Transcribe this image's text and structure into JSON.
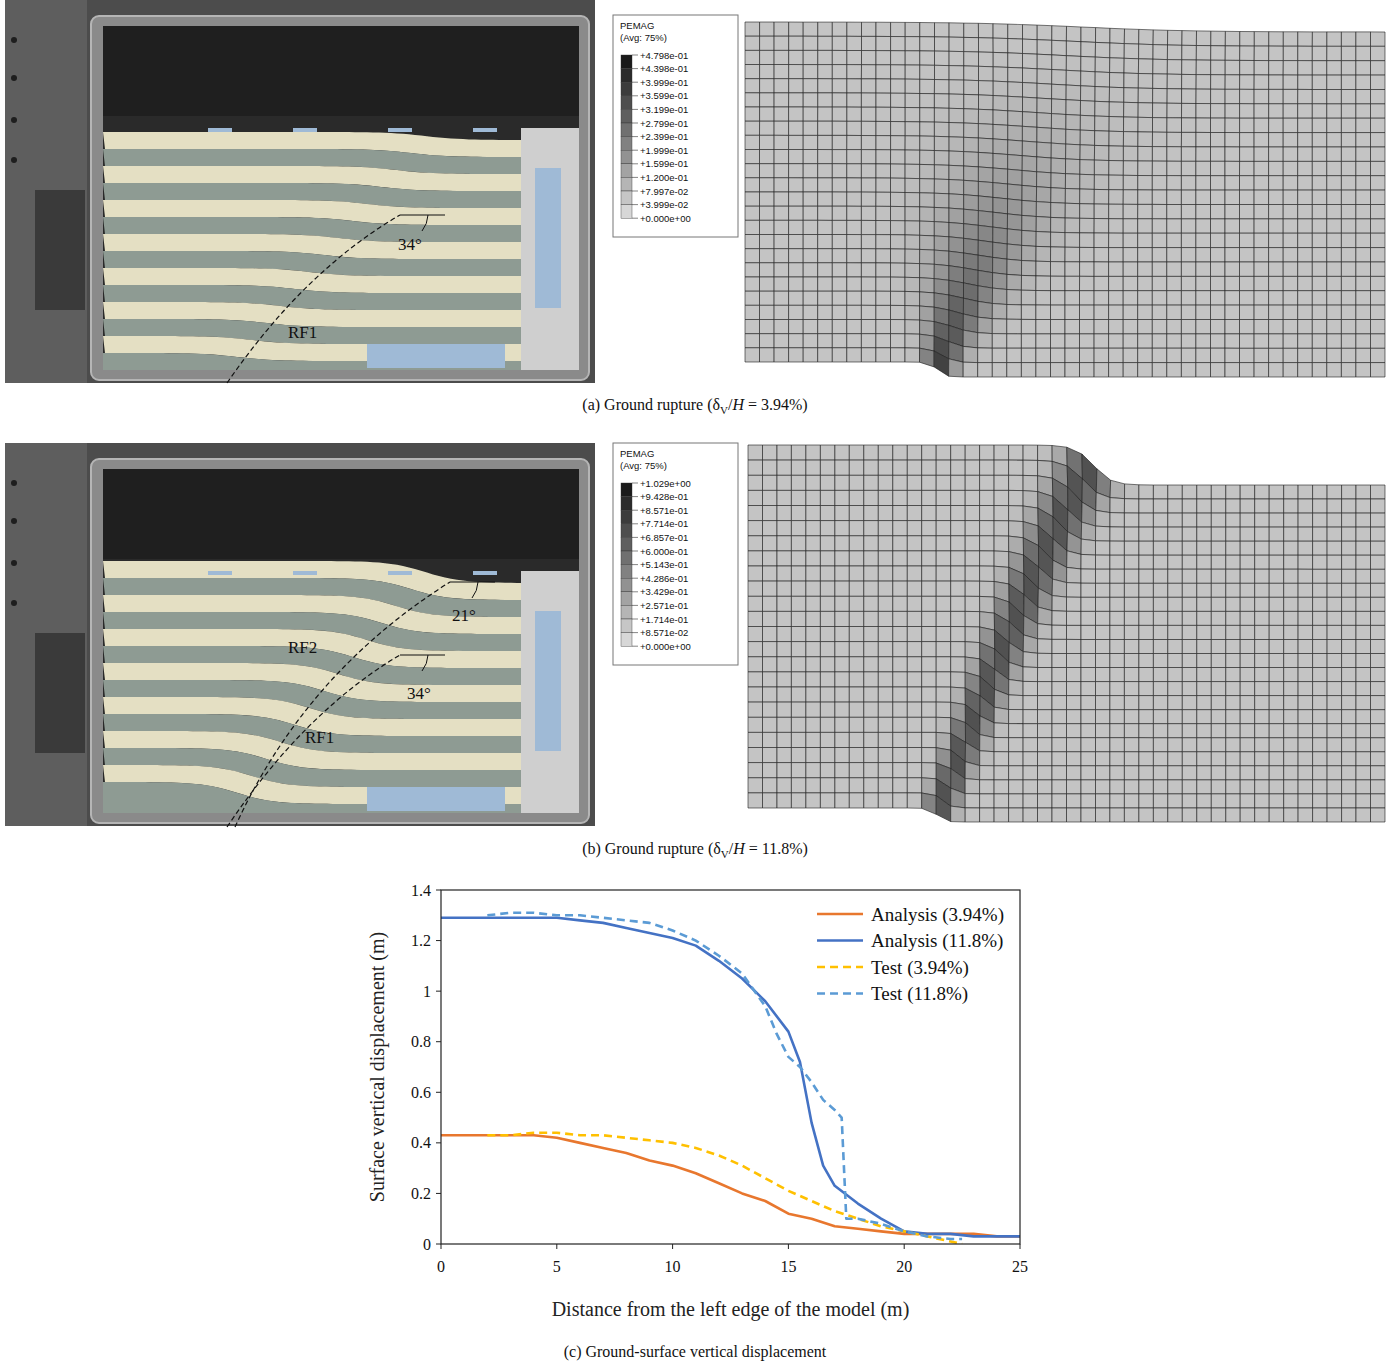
{
  "photos": [
    {
      "annotations": [
        {
          "text": "34°"
        },
        {
          "text": "RF1"
        }
      ]
    },
    {
      "annotations": [
        {
          "text": "21°"
        },
        {
          "text": "RF2"
        },
        {
          "text": "34°"
        },
        {
          "text": "RF1"
        }
      ]
    }
  ],
  "fe_legends": [
    {
      "title": "PEMAG",
      "subtitle": "(Avg: 75%)",
      "values": [
        "+4.798e-01",
        "+4.398e-01",
        "+3.999e-01",
        "+3.599e-01",
        "+3.199e-01",
        "+2.799e-01",
        "+2.399e-01",
        "+1.999e-01",
        "+1.599e-01",
        "+1.200e-01",
        "+7.997e-02",
        "+3.999e-02",
        "+0.000e+00"
      ]
    },
    {
      "title": "PEMAG",
      "subtitle": "(Avg: 75%)",
      "values": [
        "+1.029e+00",
        "+9.428e-01",
        "+8.571e-01",
        "+7.714e-01",
        "+6.857e-01",
        "+6.000e-01",
        "+5.143e-01",
        "+4.286e-01",
        "+3.429e-01",
        "+2.571e-01",
        "+1.714e-01",
        "+8.571e-02",
        "+0.000e+00"
      ]
    }
  ],
  "captions": [
    {
      "parts": [
        {
          "text": "(a) Ground rupture (δ"
        },
        {
          "text": "V",
          "style": "sub"
        },
        {
          "text": "/"
        },
        {
          "text": "H",
          "style": "italic"
        },
        {
          "text": " = 3.94%)"
        }
      ]
    },
    {
      "parts": [
        {
          "text": "(b) Ground rupture (δ"
        },
        {
          "text": "V",
          "style": "sub"
        },
        {
          "text": "/"
        },
        {
          "text": "H",
          "style": "italic"
        },
        {
          "text": " = 11.8%)"
        }
      ]
    },
    {
      "parts": [
        {
          "text": "(c) Ground-surface vertical displacement"
        }
      ]
    }
  ],
  "chart_data": {
    "type": "line",
    "x_label": "Distance from the left edge of the model (m)",
    "y_label": "Surface vertical displacement (m)",
    "xlim": [
      0,
      25
    ],
    "ylim": [
      0,
      1.4
    ],
    "xticks": [
      0,
      5,
      10,
      15,
      20,
      25
    ],
    "yticks": [
      0,
      0.2,
      0.4,
      0.6,
      0.8,
      1,
      1.2,
      1.4
    ],
    "grid": false,
    "legend": "top-right",
    "series": [
      {
        "name": "Analysis (3.94%)",
        "color": "#E8772E",
        "line_style": "solid",
        "x": [
          0,
          2,
          4,
          5,
          6,
          7,
          8,
          9,
          10,
          11,
          12,
          13,
          14,
          15,
          16,
          17,
          18,
          19,
          20,
          21,
          22,
          23,
          24,
          25
        ],
        "values": [
          0.43,
          0.43,
          0.43,
          0.42,
          0.4,
          0.38,
          0.36,
          0.33,
          0.31,
          0.28,
          0.24,
          0.2,
          0.17,
          0.12,
          0.1,
          0.07,
          0.06,
          0.05,
          0.04,
          0.04,
          0.04,
          0.04,
          0.03,
          0.03
        ]
      },
      {
        "name": "Analysis (11.8%)",
        "color": "#4472C4",
        "line_style": "solid",
        "x": [
          0,
          2,
          4,
          5,
          6,
          7,
          8,
          9,
          10,
          11,
          12,
          13,
          14,
          15,
          15.5,
          16,
          16.5,
          17,
          18,
          19,
          20,
          21,
          22,
          23,
          24,
          25
        ],
        "values": [
          1.29,
          1.29,
          1.29,
          1.29,
          1.28,
          1.27,
          1.25,
          1.23,
          1.21,
          1.18,
          1.12,
          1.05,
          0.96,
          0.84,
          0.72,
          0.48,
          0.31,
          0.23,
          0.16,
          0.1,
          0.05,
          0.04,
          0.04,
          0.03,
          0.03,
          0.03
        ]
      },
      {
        "name": "Test (3.94%)",
        "color": "#FFC000",
        "line_style": "dashed",
        "x": [
          2,
          3,
          4,
          5,
          6,
          7,
          8,
          9,
          10,
          11,
          12,
          13,
          14,
          15,
          16,
          17,
          18,
          19,
          20,
          21,
          22,
          22.5
        ],
        "values": [
          0.43,
          0.43,
          0.44,
          0.44,
          0.43,
          0.43,
          0.42,
          0.41,
          0.4,
          0.38,
          0.35,
          0.31,
          0.26,
          0.21,
          0.17,
          0.13,
          0.1,
          0.07,
          0.05,
          0.03,
          0.01,
          0.0
        ]
      },
      {
        "name": "Test (11.8%)",
        "color": "#5B9BD5",
        "line_style": "dashed",
        "x": [
          2,
          3,
          4,
          5,
          6,
          7,
          8,
          9,
          10,
          11,
          12,
          13,
          14,
          14.5,
          15,
          15.5,
          16,
          16.5,
          17,
          17.3,
          17.5,
          18,
          19,
          20,
          21,
          22,
          22.5
        ],
        "values": [
          1.3,
          1.31,
          1.31,
          1.3,
          1.3,
          1.29,
          1.28,
          1.27,
          1.24,
          1.2,
          1.14,
          1.07,
          0.94,
          0.83,
          0.74,
          0.7,
          0.64,
          0.57,
          0.53,
          0.5,
          0.1,
          0.1,
          0.08,
          0.05,
          0.03,
          0.02,
          0.02
        ]
      }
    ]
  }
}
